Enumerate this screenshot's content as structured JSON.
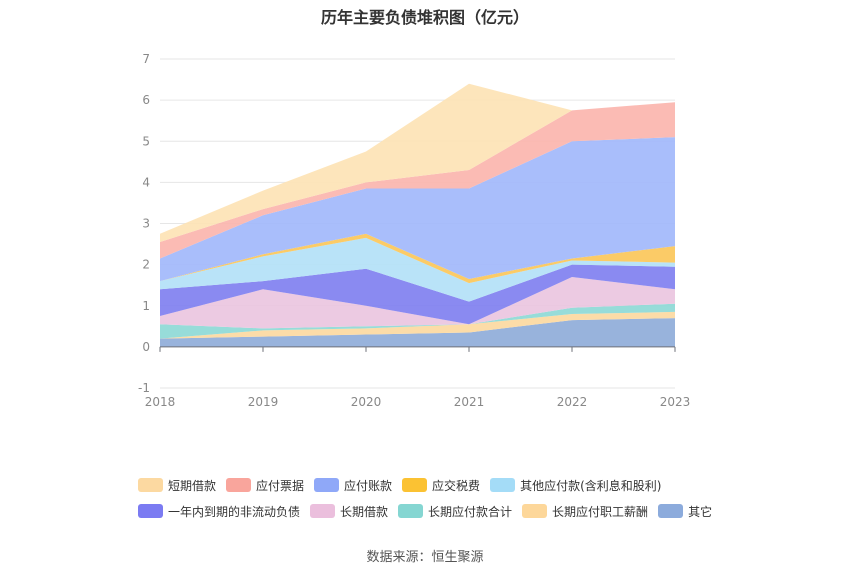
{
  "title": "历年主要负债堆积图（亿元）",
  "source": "数据来源：恒生聚源",
  "chart_data": {
    "type": "area",
    "stacked": true,
    "categories": [
      "2018",
      "2019",
      "2020",
      "2021",
      "2022",
      "2023"
    ],
    "ylim": [
      -1,
      7
    ],
    "yticks": [
      -1,
      0,
      1,
      2,
      3,
      4,
      5,
      6,
      7
    ],
    "grid": true,
    "legend_position": "bottom",
    "series": [
      {
        "name": "其它",
        "color": "#8fadd9",
        "values": [
          0.2,
          0.25,
          0.3,
          0.35,
          0.65,
          0.7
        ]
      },
      {
        "name": "长期应付职工薪酬",
        "color": "#fcd9a1",
        "values": [
          0.0,
          0.15,
          0.15,
          0.2,
          0.15,
          0.15
        ]
      },
      {
        "name": "长期应付款合计",
        "color": "#8ed9d6",
        "values": [
          0.35,
          0.05,
          0.05,
          0.0,
          0.15,
          0.2
        ]
      },
      {
        "name": "长期借款",
        "color": "#eac5df",
        "values": [
          0.2,
          0.95,
          0.5,
          0.0,
          0.75,
          0.35
        ]
      },
      {
        "name": "一年内到期的非流动负债",
        "color": "#8080f0",
        "values": [
          0.65,
          0.2,
          0.9,
          0.55,
          0.3,
          0.55
        ]
      },
      {
        "name": "其他应付款(含利息和股利)",
        "color": "#b3e1f7",
        "values": [
          0.2,
          0.6,
          0.75,
          0.45,
          0.1,
          0.1
        ]
      },
      {
        "name": "应交税费",
        "color": "#fbc75a",
        "values": [
          0.0,
          0.05,
          0.1,
          0.1,
          0.05,
          0.4
        ]
      },
      {
        "name": "应付账款",
        "color": "#a2b8fb",
        "values": [
          0.55,
          0.95,
          1.1,
          2.2,
          2.85,
          2.65
        ]
      },
      {
        "name": "应付票据",
        "color": "#fbb5ae",
        "values": [
          0.4,
          0.15,
          0.15,
          0.45,
          0.75,
          0.85
        ]
      },
      {
        "name": "短期借款",
        "color": "#fde3b5",
        "values": [
          0.2,
          0.45,
          0.75,
          2.1,
          0.0,
          0.0
        ]
      }
    ]
  },
  "legend": {
    "row1": [
      {
        "label": "短期借款",
        "color": "#fcd9a1"
      },
      {
        "label": "应付票据",
        "color": "#f9a59c"
      },
      {
        "label": "应付账款",
        "color": "#8fa8f8"
      },
      {
        "label": "应交税费",
        "color": "#fbc233"
      },
      {
        "label": "其他应付款(含利息和股利)",
        "color": "#a4dcf7"
      }
    ],
    "row2": [
      {
        "label": "一年内到期的非流动负债",
        "color": "#7b7bf2"
      },
      {
        "label": "长期借款",
        "color": "#ebbfdd"
      },
      {
        "label": "长期应付款合计",
        "color": "#85d6d2"
      },
      {
        "label": "长期应付职工薪酬",
        "color": "#fdd79a"
      },
      {
        "label": "其它",
        "color": "#8cabdc"
      }
    ]
  }
}
